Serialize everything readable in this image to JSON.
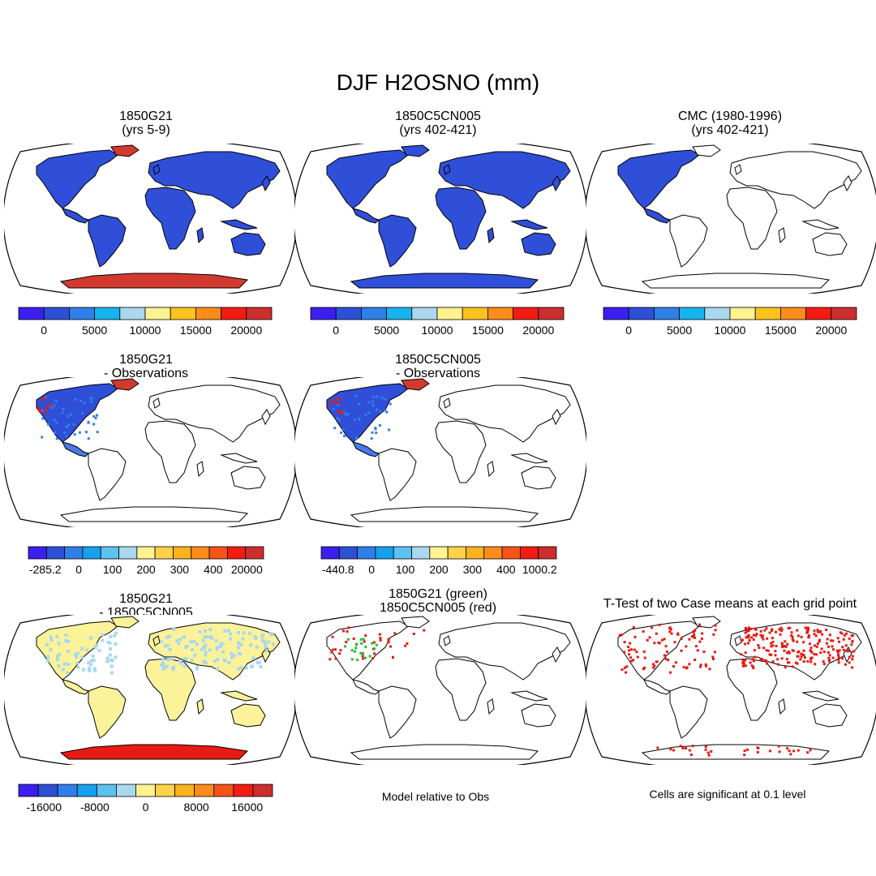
{
  "page": {
    "title": "DJF H2OSNO (mm)"
  },
  "panels": [
    {
      "id": "p1",
      "title1": "1850G21",
      "title2": "(yrs 5-9)"
    },
    {
      "id": "p2",
      "title1": "1850C5CN005",
      "title2": "(yrs 402-421)"
    },
    {
      "id": "p3",
      "title1": "CMC (1980-1996)",
      "title2": "(yrs 402-421)"
    },
    {
      "id": "p4",
      "title1": "1850G21",
      "title2": "- Observations"
    },
    {
      "id": "p5",
      "title1": "1850C5CN005",
      "title2": "- Observations"
    },
    {
      "id": "p7",
      "title1": "1850G21",
      "title2": "- 1850C5CN005"
    },
    {
      "id": "p8",
      "title1": "1850G21 (green)",
      "title2": "1850C5CN005 (red)"
    },
    {
      "id": "p9",
      "title1": "T-Test of two Case means at each grid point",
      "title2": ""
    }
  ],
  "colorbars": {
    "abs": {
      "colors": [
        "#3b1fef",
        "#2d4fd6",
        "#2f7fe9",
        "#16b4ee",
        "#a9d8ef",
        "#fff290",
        "#fdc21e",
        "#fc8d1a",
        "#f31c12",
        "#cc2d2d"
      ],
      "labels": [
        "0",
        "5000",
        "10000",
        "15000",
        "20000"
      ]
    },
    "diff1": {
      "colors": [
        "#3b1fef",
        "#2d4fd6",
        "#2f7fe9",
        "#16a0ee",
        "#5cc2ef",
        "#a9d8ef",
        "#fff290",
        "#fdd24a",
        "#fcb21c",
        "#fc8d1a",
        "#f65416",
        "#f31c12",
        "#cc2d2d"
      ],
      "labels": [
        "-285.2",
        "0",
        "100",
        "200",
        "300",
        "400",
        "20000"
      ]
    },
    "diff2": {
      "colors": [
        "#3b1fef",
        "#2d4fd6",
        "#2f7fe9",
        "#16a0ee",
        "#5cc2ef",
        "#a9d8ef",
        "#fff290",
        "#fdd24a",
        "#fcb21c",
        "#fc8d1a",
        "#f65416",
        "#f31c12",
        "#cc2d2d"
      ],
      "labels": [
        "-440.8",
        "0",
        "100",
        "200",
        "300",
        "400",
        "1000.2"
      ]
    },
    "diff3": {
      "colors": [
        "#3b1fef",
        "#2d4fd6",
        "#2f7fe9",
        "#16a0ee",
        "#5cc2ef",
        "#a9d8ef",
        "#fff290",
        "#fdd24a",
        "#fcb21c",
        "#fc8d1a",
        "#f65416",
        "#f31c12",
        "#cc2d2d"
      ],
      "labels": [
        "-16000",
        "-8000",
        "0",
        "8000",
        "16000"
      ]
    }
  },
  "notes": {
    "model_relative": "Model relative to Obs",
    "significance": "Cells are significant at 0.1 level"
  }
}
